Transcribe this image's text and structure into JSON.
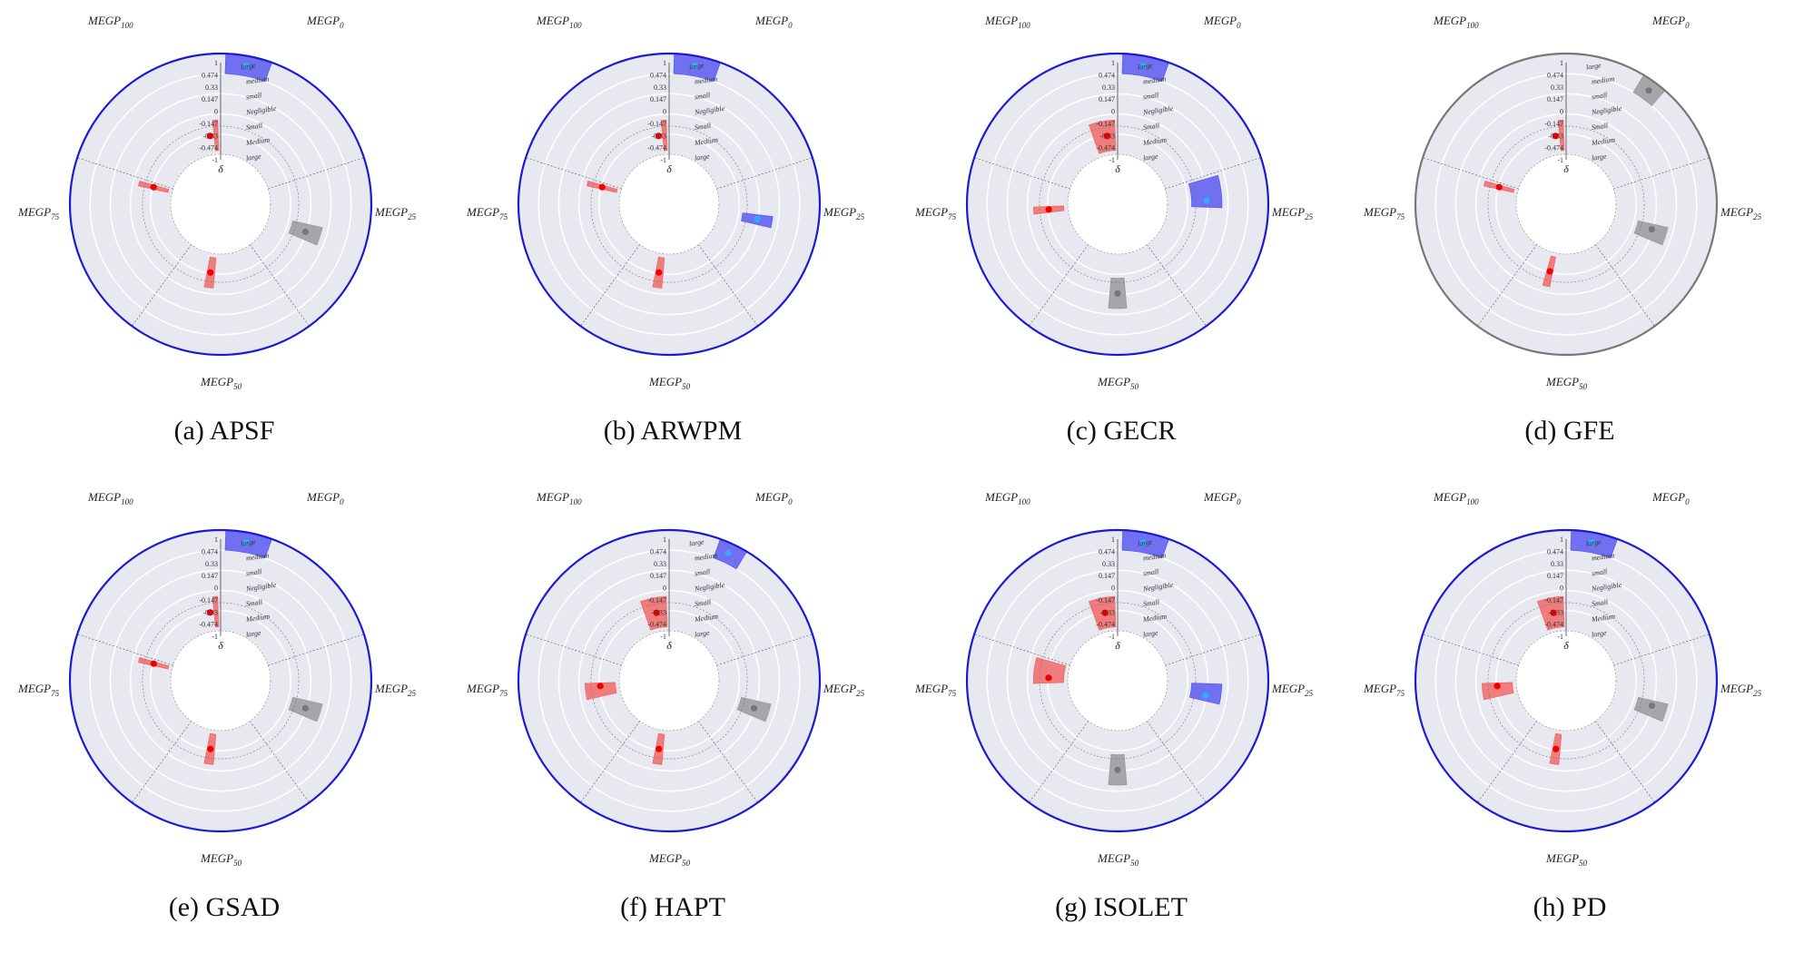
{
  "figure": {
    "axis_labels": [
      "MEGP0",
      "MEGP25",
      "MEGP50",
      "MEGP75",
      "MEGP100"
    ],
    "axis_label_base": "MEGP",
    "axis_label_subscripts": [
      "0",
      "25",
      "50",
      "75",
      "100"
    ],
    "radial_ticks": [
      "1",
      "0.474",
      "0.33",
      "0.147",
      "0",
      "-0.147",
      "-0.33",
      "-0.474",
      "-1"
    ],
    "magnitude_labels": [
      "large",
      "medium",
      "small",
      "Negligible",
      "Small",
      "Medium",
      "large"
    ],
    "center_label": "δ",
    "colors": {
      "better": "#5b5bf0",
      "worse": "#f06a6a",
      "neutral": "#9a9a9e",
      "background": "#e8e8f1",
      "outline_blue": "#1a1ad6",
      "outline_grey": "#777777",
      "dot_better": "#33aaff",
      "dot_worse": "#ee0000",
      "dot_neutral": "#777777"
    }
  },
  "chart_data": [
    {
      "type": "radial",
      "caption_letter": "(a)",
      "caption_name": "APSF",
      "outline": "blue",
      "delta_values": {
        "MEGP25": 0.0,
        "MEGP50": -0.25,
        "MEGP75": -0.95,
        "MEGP100": -0.8
      },
      "outcomes": {
        "MEGP25": "neutral",
        "MEGP50": "worse",
        "MEGP75": "worse",
        "MEGP100": "worse"
      },
      "magnitude_bands": {
        "MEGP25": [
          -0.147,
          0.147
        ],
        "MEGP50": [
          -0.33,
          -0.147
        ],
        "MEGP75": [
          -1,
          -0.9
        ],
        "MEGP100": [
          -1,
          -0.9
        ]
      },
      "reference_band": [
        0.474,
        1
      ],
      "reference_point": 0.75
    },
    {
      "type": "radial",
      "caption_letter": "(b)",
      "caption_name": "ARWPM",
      "outline": "blue",
      "delta_values": {
        "MEGP25": 0.25,
        "MEGP50": -0.25,
        "MEGP75": -0.95,
        "MEGP100": -0.8
      },
      "outcomes": {
        "MEGP25": "better",
        "MEGP50": "worse",
        "MEGP75": "worse",
        "MEGP100": "worse"
      },
      "magnitude_bands": {
        "MEGP25": [
          0.147,
          0.33
        ],
        "MEGP50": [
          -0.33,
          -0.147
        ],
        "MEGP75": [
          -1,
          -0.9
        ],
        "MEGP100": [
          -1,
          -0.9
        ]
      },
      "reference_band": [
        0.474,
        1
      ],
      "reference_point": 0.75
    },
    {
      "type": "radial",
      "caption_letter": "(c)",
      "caption_name": "GECR",
      "outline": "blue",
      "delta_values": {
        "MEGP25": 0.6,
        "MEGP50": 0.0,
        "MEGP75": -0.4,
        "MEGP100": -0.8
      },
      "outcomes": {
        "MEGP25": "better",
        "MEGP50": "neutral",
        "MEGP75": "worse",
        "MEGP100": "worse"
      },
      "magnitude_bands": {
        "MEGP25": [
          0.474,
          1
        ],
        "MEGP50": [
          -0.147,
          0.147
        ],
        "MEGP75": [
          -0.474,
          -0.33
        ],
        "MEGP100": [
          -1,
          -0.474
        ]
      },
      "reference_band": [
        0.474,
        1
      ],
      "reference_point": 0.75
    },
    {
      "type": "radial",
      "caption_letter": "(d)",
      "caption_name": "GFE",
      "outline": "grey",
      "delta_values": {
        "MEGP25": 0.05,
        "MEGP50": -0.4,
        "MEGP75": -0.95,
        "MEGP100": -0.8
      },
      "outcomes": {
        "MEGP25": "neutral",
        "MEGP50": "worse",
        "MEGP75": "worse",
        "MEGP100": "worse"
      },
      "magnitude_bands": {
        "MEGP25": [
          -0.147,
          0.147
        ],
        "MEGP50": [
          -0.474,
          -0.33
        ],
        "MEGP75": [
          -1,
          -0.9
        ],
        "MEGP100": [
          -1,
          -0.9
        ]
      },
      "reference_band": [
        -0.147,
        0.147
      ],
      "reference_point": 0.0
    },
    {
      "type": "radial",
      "caption_letter": "(e)",
      "caption_name": "GSAD",
      "outline": "blue",
      "delta_values": {
        "MEGP25": 0.0,
        "MEGP50": -0.25,
        "MEGP75": -0.95,
        "MEGP100": -0.8
      },
      "outcomes": {
        "MEGP25": "neutral",
        "MEGP50": "worse",
        "MEGP75": "worse",
        "MEGP100": "worse"
      },
      "magnitude_bands": {
        "MEGP25": [
          -0.147,
          0.147
        ],
        "MEGP50": [
          -0.33,
          -0.147
        ],
        "MEGP75": [
          -1,
          -0.9
        ],
        "MEGP100": [
          -1,
          -0.9
        ]
      },
      "reference_band": [
        0.474,
        1
      ],
      "reference_point": 0.75
    },
    {
      "type": "radial",
      "caption_letter": "(f)",
      "caption_name": "HAPT",
      "outline": "blue",
      "delta_values": {
        "MEGP25": 0.0,
        "MEGP50": -0.25,
        "MEGP75": -0.4,
        "MEGP100": -0.75
      },
      "outcomes": {
        "MEGP25": "neutral",
        "MEGP50": "worse",
        "MEGP75": "worse",
        "MEGP100": "worse"
      },
      "magnitude_bands": {
        "MEGP25": [
          -0.147,
          0.147
        ],
        "MEGP50": [
          -0.33,
          -0.147
        ],
        "MEGP75": [
          -0.474,
          -0.147
        ],
        "MEGP100": [
          -1,
          -0.474
        ]
      },
      "reference_band": [
        0.147,
        0.474
      ],
      "reference_point": 0.33
    },
    {
      "type": "radial",
      "caption_letter": "(g)",
      "caption_name": "ISOLET",
      "outline": "blue",
      "delta_values": {
        "MEGP25": 0.25,
        "MEGP50": 0.0,
        "MEGP75": -0.6,
        "MEGP100": -0.75
      },
      "outcomes": {
        "MEGP25": "better",
        "MEGP50": "neutral",
        "MEGP75": "worse",
        "MEGP100": "worse"
      },
      "magnitude_bands": {
        "MEGP25": [
          0.147,
          0.474
        ],
        "MEGP50": [
          -0.147,
          0.147
        ],
        "MEGP75": [
          -1,
          -0.474
        ],
        "MEGP100": [
          -1,
          -0.474
        ]
      },
      "reference_band": [
        0.474,
        1
      ],
      "reference_point": 0.75
    },
    {
      "type": "radial",
      "caption_letter": "(h)",
      "caption_name": "PD",
      "outline": "blue",
      "delta_values": {
        "MEGP25": 0.05,
        "MEGP50": -0.25,
        "MEGP75": -0.4,
        "MEGP100": -0.75
      },
      "outcomes": {
        "MEGP25": "neutral",
        "MEGP50": "worse",
        "MEGP75": "worse",
        "MEGP100": "worse"
      },
      "magnitude_bands": {
        "MEGP25": [
          -0.147,
          0.147
        ],
        "MEGP50": [
          -0.33,
          -0.147
        ],
        "MEGP75": [
          -0.474,
          -0.147
        ],
        "MEGP100": [
          -1,
          -0.474
        ]
      },
      "reference_band": [
        0.474,
        1
      ],
      "reference_point": 0.75
    }
  ]
}
